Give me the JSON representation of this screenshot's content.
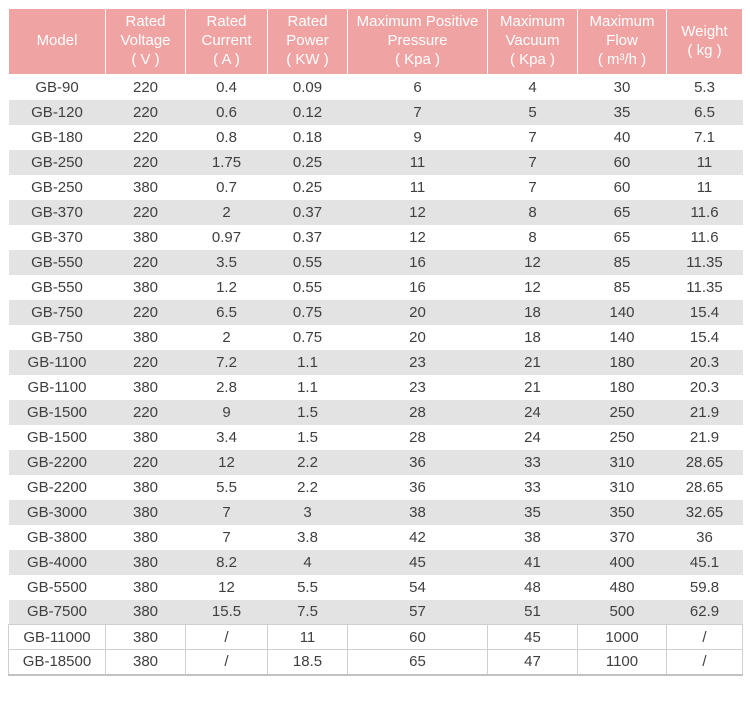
{
  "colors": {
    "header_bg": "#f0a3a3",
    "header_text": "#ffffff",
    "stripe": "#e3e3e3",
    "row_text": "#3f3f3f",
    "border": "#cfcfcf",
    "page_bg": "#ffffff"
  },
  "chart_data": {
    "type": "table",
    "title": "",
    "columns": [
      {
        "key": "model",
        "label": "Model"
      },
      {
        "key": "rated-voltage",
        "label": "Rated\nVoltage\n( V )"
      },
      {
        "key": "rated-current",
        "label": "Rated\nCurrent\n( A )"
      },
      {
        "key": "rated-power",
        "label": "Rated\nPower\n( KW )"
      },
      {
        "key": "max-positive-pressure",
        "label": "Maximum Positive\nPressure\n( Kpa )"
      },
      {
        "key": "max-vacuum",
        "label": "Maximum\nVacuum\n( Kpa )"
      },
      {
        "key": "max-flow",
        "label": "Maximum\nFlow\n( m³/h )"
      },
      {
        "key": "weight",
        "label": "Weight\n( kg )"
      }
    ],
    "rows": [
      [
        "GB-90",
        "220",
        "0.4",
        "0.09",
        "6",
        "4",
        "30",
        "5.3"
      ],
      [
        "GB-120",
        "220",
        "0.6",
        "0.12",
        "7",
        "5",
        "35",
        "6.5"
      ],
      [
        "GB-180",
        "220",
        "0.8",
        "0.18",
        "9",
        "7",
        "40",
        "7.1"
      ],
      [
        "GB-250",
        "220",
        "1.75",
        "0.25",
        "11",
        "7",
        "60",
        "11"
      ],
      [
        "GB-250",
        "380",
        "0.7",
        "0.25",
        "11",
        "7",
        "60",
        "11"
      ],
      [
        "GB-370",
        "220",
        "2",
        "0.37",
        "12",
        "8",
        "65",
        "11.6"
      ],
      [
        "GB-370",
        "380",
        "0.97",
        "0.37",
        "12",
        "8",
        "65",
        "11.6"
      ],
      [
        "GB-550",
        "220",
        "3.5",
        "0.55",
        "16",
        "12",
        "85",
        "11.35"
      ],
      [
        "GB-550",
        "380",
        "1.2",
        "0.55",
        "16",
        "12",
        "85",
        "11.35"
      ],
      [
        "GB-750",
        "220",
        "6.5",
        "0.75",
        "20",
        "18",
        "140",
        "15.4"
      ],
      [
        "GB-750",
        "380",
        "2",
        "0.75",
        "20",
        "18",
        "140",
        "15.4"
      ],
      [
        "GB-1100",
        "220",
        "7.2",
        "1.1",
        "23",
        "21",
        "180",
        "20.3"
      ],
      [
        "GB-1100",
        "380",
        "2.8",
        "1.1",
        "23",
        "21",
        "180",
        "20.3"
      ],
      [
        "GB-1500",
        "220",
        "9",
        "1.5",
        "28",
        "24",
        "250",
        "21.9"
      ],
      [
        "GB-1500",
        "380",
        "3.4",
        "1.5",
        "28",
        "24",
        "250",
        "21.9"
      ],
      [
        "GB-2200",
        "220",
        "12",
        "2.2",
        "36",
        "33",
        "310",
        "28.65"
      ],
      [
        "GB-2200",
        "380",
        "5.5",
        "2.2",
        "36",
        "33",
        "310",
        "28.65"
      ],
      [
        "GB-3000",
        "380",
        "7",
        "3",
        "38",
        "35",
        "350",
        "32.65"
      ],
      [
        "GB-3800",
        "380",
        "7",
        "3.8",
        "42",
        "38",
        "370",
        "36"
      ],
      [
        "GB-4000",
        "380",
        "8.2",
        "4",
        "45",
        "41",
        "400",
        "45.1"
      ],
      [
        "GB-5500",
        "380",
        "12",
        "5.5",
        "54",
        "48",
        "480",
        "59.8"
      ],
      [
        "GB-7500",
        "380",
        "15.5",
        "7.5",
        "57",
        "51",
        "500",
        "62.9"
      ],
      [
        "GB-11000",
        "380",
        "/",
        "11",
        "60",
        "45",
        "1000",
        "/"
      ],
      [
        "GB-18500",
        "380",
        "/",
        "18.5",
        "65",
        "47",
        "1100",
        "/"
      ]
    ]
  }
}
